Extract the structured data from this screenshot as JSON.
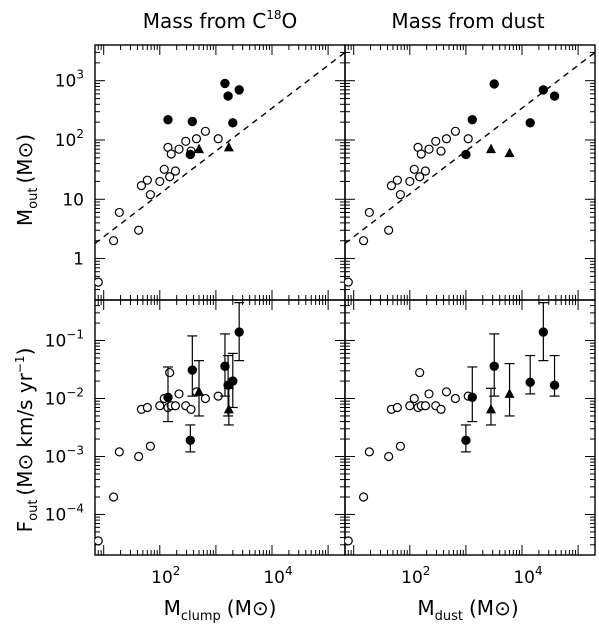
{
  "chart_data": {
    "type": "scatter",
    "layout": "2x2 grid of log-log scatter panels",
    "column_titles": [
      {
        "prefix": "Mass from C",
        "superscript": "18",
        "suffix": "O"
      },
      {
        "prefix": "Mass from dust",
        "superscript": "",
        "suffix": ""
      }
    ],
    "x_axis_labels": [
      {
        "main": "M",
        "sub": "clump",
        "unit": "(M",
        "sun": "⊙",
        "close": ")"
      },
      {
        "main": "M",
        "sub": "dust",
        "unit": "(M",
        "sun": "⊙",
        "close": ")"
      }
    ],
    "y_axis_labels": {
      "top": {
        "main": "M",
        "sub": "out",
        "unit": "(M",
        "sun": "⊙",
        "close": ")"
      },
      "bottom": {
        "main": "F",
        "sub": "out",
        "unit": "(M",
        "sun": "⊙",
        "mid": "km/s yr",
        "exp": "−1",
        "close": ")"
      }
    },
    "xscale": "log",
    "yscale": "log",
    "xlim": [
      7,
      200000
    ],
    "ylim_top": [
      0.2,
      4000
    ],
    "ylim_bottom": [
      2e-05,
      0.5
    ],
    "x_ticks": [
      {
        "value": 100,
        "base": "10",
        "exp": "2"
      },
      {
        "value": 10000,
        "base": "10",
        "exp": "4"
      }
    ],
    "y_ticks_top": [
      {
        "value": 1,
        "text": "1"
      },
      {
        "value": 10,
        "base": "10",
        "exp": ""
      },
      {
        "value": 100,
        "base": "10",
        "exp": "2"
      },
      {
        "value": 1000,
        "base": "10",
        "exp": "3"
      }
    ],
    "y_ticks_bottom": [
      {
        "value": 0.0001,
        "base": "10",
        "exp": "−4"
      },
      {
        "value": 0.001,
        "base": "10",
        "exp": "−3"
      },
      {
        "value": 0.01,
        "base": "10",
        "exp": "−2"
      },
      {
        "value": 0.1,
        "base": "10",
        "exp": "−1"
      }
    ],
    "marker_legend": {
      "open_circle": "open markers",
      "filled_circle": "filled markers",
      "triangle": "filled triangles"
    },
    "panels": [
      {
        "row": "top",
        "col": "left",
        "fit_line": {
          "style": "dashed",
          "x": [
            7,
            200000
          ],
          "y": [
            1.8,
            3000
          ]
        },
        "series": [
          {
            "marker": "open_circle",
            "points": [
              [
                8,
                0.4
              ],
              [
                15,
                2
              ],
              [
                19,
                6
              ],
              [
                42,
                3
              ],
              [
                47,
                17
              ],
              [
                60,
                21
              ],
              [
                68,
                12
              ],
              [
                100,
                20
              ],
              [
                120,
                32
              ],
              [
                140,
                75
              ],
              [
                150,
                24
              ],
              [
                160,
                58
              ],
              [
                190,
                30
              ],
              [
                220,
                70
              ],
              [
                290,
                95
              ],
              [
                360,
                65
              ],
              [
                450,
                105
              ],
              [
                650,
                140
              ],
              [
                1100,
                105
              ]
            ]
          },
          {
            "marker": "filled_circle",
            "points": [
              [
                140,
                220
              ],
              [
                350,
                57
              ],
              [
                380,
                205
              ],
              [
                1450,
                900
              ],
              [
                1650,
                550
              ],
              [
                2000,
                195
              ],
              [
                2600,
                700
              ]
            ]
          },
          {
            "marker": "triangle",
            "points": [
              [
                500,
                70
              ],
              [
                1700,
                75
              ]
            ]
          }
        ]
      },
      {
        "row": "top",
        "col": "right",
        "fit_line": {
          "style": "dashed",
          "x": [
            7,
            200000
          ],
          "y": [
            1.8,
            3000
          ]
        },
        "series": [
          {
            "marker": "open_circle",
            "points": [
              [
                8,
                0.4
              ],
              [
                15,
                2
              ],
              [
                19,
                6
              ],
              [
                42,
                3
              ],
              [
                47,
                17
              ],
              [
                60,
                21
              ],
              [
                68,
                12
              ],
              [
                100,
                20
              ],
              [
                120,
                32
              ],
              [
                140,
                75
              ],
              [
                150,
                24
              ],
              [
                160,
                58
              ],
              [
                190,
                30
              ],
              [
                220,
                70
              ],
              [
                290,
                95
              ],
              [
                360,
                65
              ],
              [
                450,
                105
              ],
              [
                650,
                140
              ],
              [
                1100,
                105
              ]
            ]
          },
          {
            "marker": "filled_circle",
            "points": [
              [
                1000,
                57
              ],
              [
                1300,
                220
              ],
              [
                3200,
                880
              ],
              [
                14000,
                195
              ],
              [
                24000,
                700
              ],
              [
                38000,
                550
              ]
            ]
          },
          {
            "marker": "triangle",
            "points": [
              [
                2800,
                70
              ],
              [
                6000,
                60
              ]
            ]
          }
        ]
      },
      {
        "row": "bottom",
        "col": "left",
        "series": [
          {
            "marker": "open_circle",
            "points": [
              [
                8,
                3.5e-05
              ],
              [
                15,
                0.0002
              ],
              [
                19,
                0.0012
              ],
              [
                42,
                0.001
              ],
              [
                47,
                0.0065
              ],
              [
                60,
                0.007
              ],
              [
                68,
                0.0015
              ],
              [
                100,
                0.0075
              ],
              [
                120,
                0.01
              ],
              [
                140,
                0.007
              ],
              [
                150,
                0.028
              ],
              [
                160,
                0.0075
              ],
              [
                190,
                0.0075
              ],
              [
                220,
                0.012
              ],
              [
                290,
                0.0075
              ],
              [
                360,
                0.0065
              ],
              [
                450,
                0.013
              ],
              [
                650,
                0.01
              ],
              [
                1100,
                0.011
              ]
            ]
          },
          {
            "marker": "filled_circle",
            "points": [
              [
                140,
                0.0105,
                0.004,
                0.035
              ],
              [
                350,
                0.0019,
                0.0012,
                0.0035
              ],
              [
                380,
                0.031,
                0.011,
                0.12
              ],
              [
                1450,
                0.036,
                0.011,
                0.13
              ],
              [
                1650,
                0.017,
                0.005,
                0.055
              ],
              [
                2000,
                0.02,
                0.007,
                0.06
              ],
              [
                2600,
                0.14,
                0.045,
                0.45
              ]
            ]
          },
          {
            "marker": "triangle",
            "points": [
              [
                500,
                0.013,
                0.005,
                0.045
              ],
              [
                1700,
                0.0065,
                0.0035,
                0.015
              ]
            ]
          }
        ]
      },
      {
        "row": "bottom",
        "col": "right",
        "series": [
          {
            "marker": "open_circle",
            "points": [
              [
                8,
                3.5e-05
              ],
              [
                15,
                0.0002
              ],
              [
                19,
                0.0012
              ],
              [
                42,
                0.001
              ],
              [
                47,
                0.0065
              ],
              [
                60,
                0.007
              ],
              [
                68,
                0.0015
              ],
              [
                100,
                0.0075
              ],
              [
                120,
                0.01
              ],
              [
                140,
                0.007
              ],
              [
                150,
                0.028
              ],
              [
                160,
                0.0075
              ],
              [
                190,
                0.0075
              ],
              [
                220,
                0.012
              ],
              [
                290,
                0.0075
              ],
              [
                360,
                0.0065
              ],
              [
                450,
                0.013
              ],
              [
                650,
                0.01
              ],
              [
                1100,
                0.011
              ]
            ]
          },
          {
            "marker": "filled_circle",
            "points": [
              [
                1000,
                0.0019,
                0.0012,
                0.0035
              ],
              [
                1300,
                0.0105,
                0.004,
                0.035
              ],
              [
                3200,
                0.036,
                0.011,
                0.13
              ],
              [
                14000,
                0.019,
                0.012,
                0.055
              ],
              [
                24000,
                0.14,
                0.045,
                0.45
              ],
              [
                38000,
                0.017,
                0.011,
                0.055
              ]
            ]
          },
          {
            "marker": "triangle",
            "points": [
              [
                2800,
                0.0065,
                0.0035,
                0.015
              ],
              [
                6000,
                0.012,
                0.005,
                0.04
              ]
            ]
          }
        ]
      }
    ]
  }
}
